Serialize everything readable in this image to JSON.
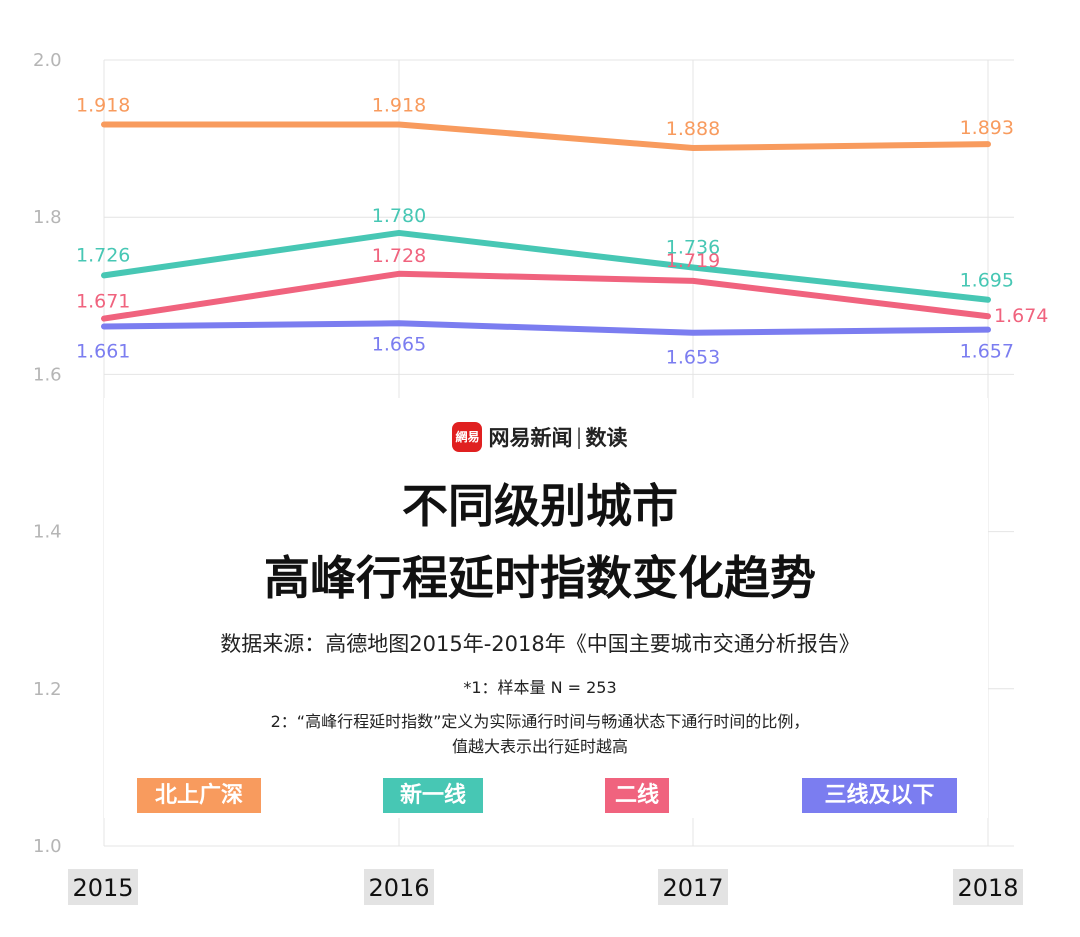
{
  "brand": {
    "logo_text": "網易",
    "name": "网易新闻",
    "separator": "|",
    "sub": "数读"
  },
  "title": {
    "line1": "不同级别城市",
    "line2": "高峰行程延时指数变化趋势"
  },
  "source": "数据来源：高德地图2015年-2018年《中国主要城市交通分析报告》",
  "notes": {
    "line1": "*1：样本量 N = 253",
    "line2": "2：“高峰行程延时指数”定义为实际通行时间与畅通状态下通行时间的比例，",
    "line3": "值越大表示出行延时越高"
  },
  "legend": [
    {
      "label": "北上广深",
      "color": "#F89B5E"
    },
    {
      "label": "新一线",
      "color": "#47C7B4"
    },
    {
      "label": "二线",
      "color": "#F0637E"
    },
    {
      "label": "三线及以下",
      "color": "#7B7DF0"
    }
  ],
  "chart_data": {
    "type": "line",
    "categories": [
      "2015",
      "2016",
      "2017",
      "2018"
    ],
    "ylim": [
      1.0,
      2.0
    ],
    "yticks": [
      "1.0",
      "1.2",
      "1.4",
      "1.6",
      "1.8",
      "2.0"
    ],
    "grid": true,
    "series": [
      {
        "name": "北上广深",
        "color": "#F89B5E",
        "values": [
          1.918,
          1.918,
          1.888,
          1.893
        ],
        "labels": [
          "1.918",
          "1.918",
          "1.888",
          "1.893"
        ]
      },
      {
        "name": "新一线",
        "color": "#47C7B4",
        "values": [
          1.726,
          1.78,
          1.736,
          1.695
        ],
        "labels": [
          "1.726",
          "1.780",
          "1.736",
          "1.695"
        ]
      },
      {
        "name": "二线",
        "color": "#F0637E",
        "values": [
          1.671,
          1.728,
          1.719,
          1.674
        ],
        "labels": [
          "1.671",
          "1.728",
          "1.719",
          "1.674"
        ]
      },
      {
        "name": "三线及以下",
        "color": "#7B7DF0",
        "values": [
          1.661,
          1.665,
          1.653,
          1.657
        ],
        "labels": [
          "1.661",
          "1.665",
          "1.653",
          "1.657"
        ]
      }
    ]
  }
}
